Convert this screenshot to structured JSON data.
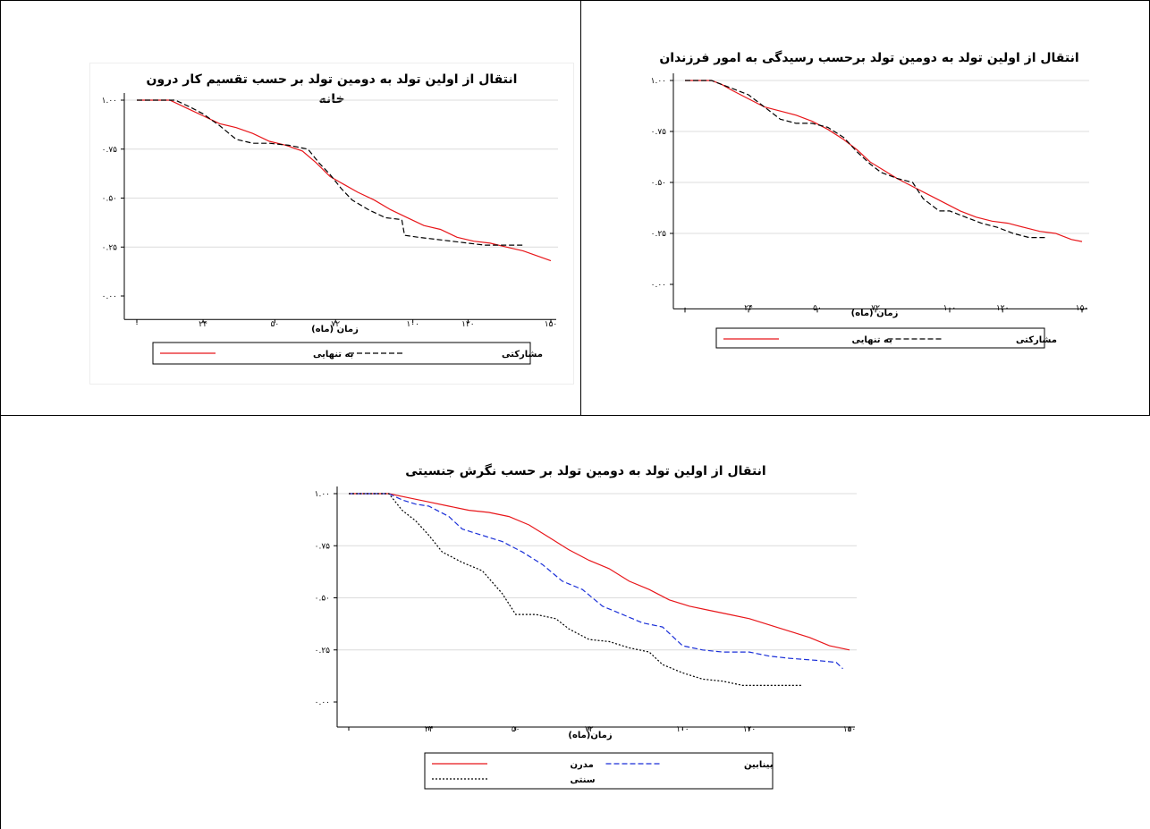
{
  "chart_data": [
    {
      "type": "line",
      "title": "انتقال از اولین تولد به دومین تولد بر حسب تقسیم کار درون",
      "title_line2": "خانه",
      "xlabel": "زمان (ماه)",
      "x_ticks": [
        "۰",
        "۲۴",
        "۵۰",
        "۷۲",
        "۱۰۰",
        "۱۲۰",
        "۱۵۰"
      ],
      "x_tick_values": [
        0,
        24,
        50,
        72,
        100,
        120,
        150
      ],
      "y_ticks": [
        "۰.۰۰",
        "۰.۲۵",
        "۰.۵۰",
        "۰.۷۵",
        "۱.۰۰"
      ],
      "y_tick_values": [
        0,
        0.25,
        0.5,
        0.75,
        1.0
      ],
      "xlim": [
        0,
        150
      ],
      "ylim": [
        0,
        1
      ],
      "grid": true,
      "legend_position": "bottom",
      "series": [
        {
          "name": "به تنهایی",
          "color": "#e8161a",
          "dash": "solid",
          "x": [
            0,
            12,
            18,
            24,
            30,
            36,
            42,
            48,
            54,
            60,
            65,
            70,
            75,
            80,
            86,
            92,
            98,
            104,
            110,
            116,
            122,
            128,
            134,
            140,
            146,
            150
          ],
          "y": [
            1.0,
            1.0,
            0.96,
            0.92,
            0.88,
            0.86,
            0.83,
            0.79,
            0.77,
            0.74,
            0.68,
            0.61,
            0.57,
            0.53,
            0.49,
            0.44,
            0.4,
            0.36,
            0.34,
            0.3,
            0.28,
            0.27,
            0.25,
            0.23,
            0.2,
            0.18
          ]
        },
        {
          "name": "مشارکتی",
          "color": "#000000",
          "dash": "dashed",
          "x": [
            0,
            14,
            20,
            24,
            30,
            36,
            42,
            48,
            55,
            62,
            66,
            70,
            74,
            78,
            84,
            90,
            96,
            97,
            102,
            108,
            114,
            120,
            126,
            132,
            140
          ],
          "y": [
            1.0,
            1.0,
            0.96,
            0.93,
            0.87,
            0.8,
            0.78,
            0.78,
            0.77,
            0.75,
            0.68,
            0.62,
            0.55,
            0.49,
            0.44,
            0.4,
            0.39,
            0.31,
            0.3,
            0.29,
            0.28,
            0.27,
            0.26,
            0.26,
            0.26
          ]
        }
      ]
    },
    {
      "type": "line",
      "title": "انتقال از اولین تولد به دومین تولد برحسب رسیدگی به امور فرزندان",
      "xlabel": "زمان (ماه)",
      "x_ticks": [
        "۰",
        "۲۴",
        "۵۰",
        "۷۲",
        "۱۰۰",
        "۱۲۰",
        "۱۵۰"
      ],
      "x_tick_values": [
        0,
        24,
        50,
        72,
        100,
        120,
        150
      ],
      "y_ticks": [
        "۰.۰۰",
        "۰.۲۵",
        "۰.۵۰",
        "۰.۷۵",
        "۱.۰۰"
      ],
      "y_tick_values": [
        0,
        0.25,
        0.5,
        0.75,
        1.0
      ],
      "xlim": [
        0,
        150
      ],
      "ylim": [
        0,
        1
      ],
      "grid": true,
      "legend_position": "bottom",
      "series": [
        {
          "name": "به تنهایی",
          "color": "#e8161a",
          "dash": "solid",
          "x": [
            0,
            10,
            14,
            18,
            24,
            30,
            36,
            42,
            48,
            54,
            60,
            65,
            70,
            75,
            80,
            86,
            92,
            98,
            104,
            110,
            116,
            122,
            128,
            134,
            140,
            146,
            150
          ],
          "y": [
            1.0,
            1.0,
            0.98,
            0.95,
            0.91,
            0.87,
            0.85,
            0.83,
            0.8,
            0.76,
            0.71,
            0.66,
            0.6,
            0.56,
            0.52,
            0.48,
            0.44,
            0.4,
            0.36,
            0.33,
            0.31,
            0.3,
            0.28,
            0.26,
            0.25,
            0.22,
            0.21
          ]
        },
        {
          "name": "مشارکتی",
          "color": "#000000",
          "dash": "dashed",
          "x": [
            0,
            10,
            14,
            18,
            24,
            30,
            36,
            42,
            48,
            54,
            60,
            65,
            70,
            74,
            80,
            86,
            90,
            96,
            100,
            106,
            112,
            118,
            124,
            130,
            136
          ],
          "y": [
            1.0,
            1.0,
            0.98,
            0.96,
            0.93,
            0.87,
            0.81,
            0.79,
            0.79,
            0.77,
            0.72,
            0.65,
            0.59,
            0.55,
            0.52,
            0.5,
            0.42,
            0.36,
            0.36,
            0.33,
            0.3,
            0.28,
            0.25,
            0.23,
            0.23
          ]
        }
      ]
    },
    {
      "type": "line",
      "title": "انتقال از اولین تولد به دومین تولد بر حسب نگرش جنسیتی",
      "xlabel": "زمان(ماه)",
      "x_ticks": [
        "۰",
        "۲۴",
        "۵۰",
        "۷۲",
        "۱۰۰",
        "۱۲۰",
        "۱۵۰"
      ],
      "x_tick_values": [
        0,
        24,
        50,
        72,
        100,
        120,
        150
      ],
      "y_ticks": [
        "۰.۰۰",
        "۰.۲۵",
        "۰.۵۰",
        "۰.۷۵",
        "۱.۰۰"
      ],
      "y_tick_values": [
        0,
        0.25,
        0.5,
        0.75,
        1.0
      ],
      "xlim": [
        0,
        150
      ],
      "ylim": [
        0,
        1
      ],
      "grid": true,
      "legend_position": "bottom",
      "series": [
        {
          "name": "مدرن",
          "color": "#e8161a",
          "dash": "solid",
          "x": [
            0,
            12,
            18,
            24,
            30,
            36,
            42,
            48,
            54,
            60,
            66,
            72,
            78,
            84,
            90,
            96,
            102,
            108,
            114,
            120,
            126,
            132,
            138,
            144,
            150
          ],
          "y": [
            1.0,
            1.0,
            0.98,
            0.96,
            0.94,
            0.92,
            0.91,
            0.89,
            0.85,
            0.79,
            0.73,
            0.68,
            0.64,
            0.58,
            0.54,
            0.49,
            0.46,
            0.44,
            0.42,
            0.4,
            0.37,
            0.34,
            0.31,
            0.27,
            0.25
          ]
        },
        {
          "name": "بینابین",
          "color": "#1a2fd8",
          "dash": "dashed",
          "x": [
            0,
            12,
            16,
            20,
            24,
            30,
            34,
            40,
            46,
            52,
            58,
            64,
            70,
            76,
            82,
            88,
            94,
            100,
            106,
            112,
            120,
            126,
            132,
            140,
            146,
            148
          ],
          "y": [
            1.0,
            1.0,
            0.97,
            0.95,
            0.94,
            0.89,
            0.83,
            0.8,
            0.77,
            0.72,
            0.66,
            0.58,
            0.54,
            0.46,
            0.42,
            0.38,
            0.36,
            0.27,
            0.25,
            0.24,
            0.24,
            0.22,
            0.21,
            0.2,
            0.19,
            0.16
          ]
        },
        {
          "name": "سنتی",
          "color": "#000000",
          "dash": "dotted",
          "x": [
            0,
            12,
            16,
            20,
            24,
            28,
            34,
            40,
            46,
            50,
            56,
            62,
            66,
            72,
            78,
            84,
            90,
            94,
            100,
            106,
            112,
            118,
            126,
            130,
            136
          ],
          "y": [
            1.0,
            1.0,
            0.92,
            0.87,
            0.8,
            0.72,
            0.67,
            0.63,
            0.52,
            0.42,
            0.42,
            0.4,
            0.35,
            0.3,
            0.29,
            0.26,
            0.24,
            0.18,
            0.14,
            0.11,
            0.1,
            0.08,
            0.08,
            0.08,
            0.08
          ]
        }
      ]
    }
  ]
}
